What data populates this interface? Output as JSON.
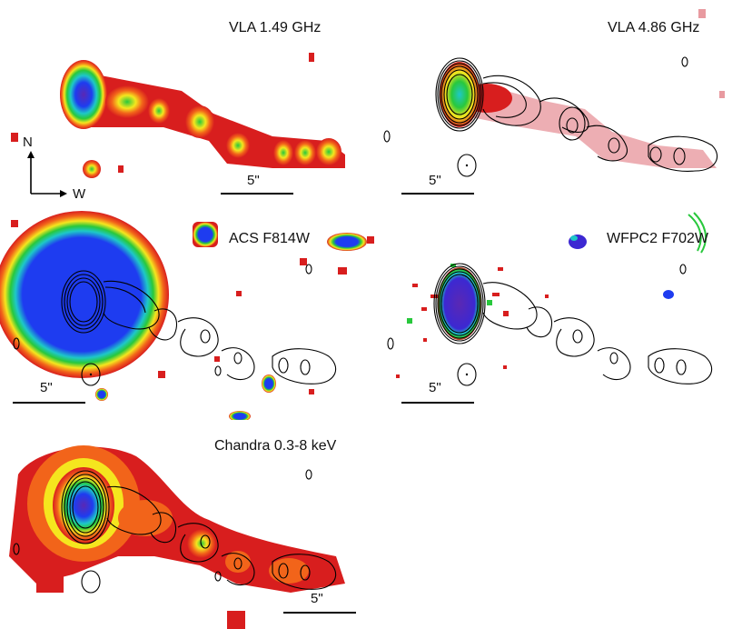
{
  "panels": [
    {
      "id": "vla149",
      "label": "VLA 1.49 GHz",
      "scale": "5\""
    },
    {
      "id": "vla486",
      "label": "VLA 4.86 GHz",
      "scale": "5\""
    },
    {
      "id": "acs",
      "label": "ACS F814W",
      "scale": "5\""
    },
    {
      "id": "wfpc2",
      "label": "WFPC2 F702W",
      "scale": "5\""
    },
    {
      "id": "chandra",
      "label": "Chandra 0.3-8 keV",
      "scale": "5\""
    }
  ],
  "compass": {
    "north": "N",
    "west": "W"
  },
  "colors": {
    "red": "#d81e1e",
    "orange": "#f2641a",
    "yellow": "#f5e61e",
    "green": "#28c83c",
    "cyan": "#1ec8c8",
    "blue": "#1e3cf0",
    "violet": "#5a28b4",
    "pink": "#e89aa0"
  }
}
